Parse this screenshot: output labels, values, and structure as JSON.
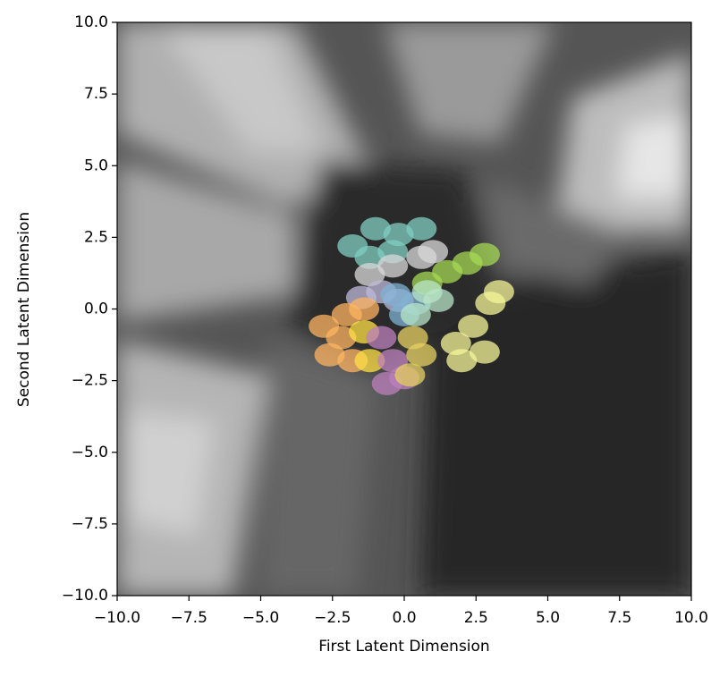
{
  "chart_data": {
    "type": "scatter",
    "xlabel": "First Latent Dimension",
    "ylabel": "Second Latent Dimension",
    "xlim": [
      -10,
      10
    ],
    "ylim": [
      -10,
      10
    ],
    "xticks": [
      {
        "value": -10,
        "label": "−10.0"
      },
      {
        "value": -7.5,
        "label": "−7.5"
      },
      {
        "value": -5,
        "label": "−5.0"
      },
      {
        "value": -2.5,
        "label": "−2.5"
      },
      {
        "value": 0,
        "label": "0.0"
      },
      {
        "value": 2.5,
        "label": "2.5"
      },
      {
        "value": 5,
        "label": "5.0"
      },
      {
        "value": 7.5,
        "label": "7.5"
      },
      {
        "value": 10,
        "label": "10.0"
      }
    ],
    "yticks": [
      {
        "value": -10,
        "label": "−10.0"
      },
      {
        "value": -7.5,
        "label": "−7.5"
      },
      {
        "value": -5,
        "label": "−5.0"
      },
      {
        "value": -2.5,
        "label": "−2.5"
      },
      {
        "value": 0,
        "label": "0.0"
      },
      {
        "value": 2.5,
        "label": "2.5"
      },
      {
        "value": 5,
        "label": "5.0"
      },
      {
        "value": 7.5,
        "label": "7.5"
      },
      {
        "value": 10,
        "label": "10.0"
      }
    ],
    "series": [
      {
        "color": "#80cdc1",
        "x": [
          -1.8,
          -1.0,
          -0.2,
          0.6,
          -1.2,
          -0.4
        ],
        "values": [
          2.2,
          2.8,
          2.6,
          2.8,
          1.8,
          2.0
        ]
      },
      {
        "color": "#d9d9d9",
        "x": [
          -1.2,
          -0.4,
          0.6,
          1.0
        ],
        "values": [
          1.2,
          1.5,
          1.8,
          2.0
        ]
      },
      {
        "color": "#bebada",
        "x": [
          -1.5,
          -0.8,
          -0.2
        ],
        "values": [
          0.4,
          0.6,
          0.3
        ]
      },
      {
        "color": "#80b1d3",
        "x": [
          -0.3,
          0.4,
          0.0
        ],
        "values": [
          0.5,
          0.2,
          -0.2
        ]
      },
      {
        "color": "#a6d854",
        "x": [
          0.8,
          1.5,
          2.2,
          2.8
        ],
        "values": [
          0.9,
          1.3,
          1.6,
          1.9
        ]
      },
      {
        "color": "#b8e6c8",
        "x": [
          0.4,
          1.2,
          0.8
        ],
        "values": [
          -0.2,
          0.3,
          0.6
        ]
      },
      {
        "color": "#f5f59a",
        "x": [
          1.8,
          2.4,
          3.0,
          2.8,
          2.0,
          3.3
        ],
        "values": [
          -1.2,
          -0.6,
          0.2,
          -1.5,
          -1.8,
          0.6
        ]
      },
      {
        "color": "#fdb462",
        "x": [
          -2.8,
          -2.0,
          -1.4,
          -2.6,
          -1.8,
          -2.2
        ],
        "values": [
          -0.6,
          -0.2,
          0.0,
          -1.6,
          -1.8,
          -1.0
        ]
      },
      {
        "color": "#ffe045",
        "x": [
          -1.4,
          -1.2
        ],
        "values": [
          -0.8,
          -1.8
        ]
      },
      {
        "color": "#bc80bd",
        "x": [
          -0.8,
          -0.4,
          -0.6,
          0.0
        ],
        "values": [
          -1.0,
          -1.8,
          -2.6,
          -2.4
        ]
      },
      {
        "color": "#e6cf62",
        "x": [
          0.3,
          0.6,
          0.2
        ],
        "values": [
          -1.0,
          -1.6,
          -2.3
        ]
      }
    ]
  }
}
